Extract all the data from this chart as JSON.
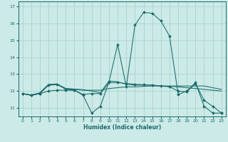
{
  "title": "",
  "xlabel": "Humidex (Indice chaleur)",
  "ylabel": "",
  "bg_color": "#cceae7",
  "grid_color": "#aad4d0",
  "line_color": "#1a6b6b",
  "xlim": [
    -0.5,
    23.5
  ],
  "ylim": [
    10.5,
    17.3
  ],
  "xticks": [
    0,
    1,
    2,
    3,
    4,
    5,
    6,
    7,
    8,
    9,
    10,
    11,
    12,
    13,
    14,
    15,
    16,
    17,
    18,
    19,
    20,
    21,
    22,
    23
  ],
  "yticks": [
    11,
    12,
    13,
    14,
    15,
    16,
    17
  ],
  "lines": [
    {
      "x": [
        0,
        1,
        2,
        3,
        4,
        5,
        6,
        7,
        8,
        9,
        10,
        11,
        12,
        13,
        14,
        15,
        16,
        17,
        18,
        19,
        20,
        21,
        22,
        23
      ],
      "y": [
        11.85,
        11.75,
        11.85,
        12.35,
        12.4,
        12.1,
        12.05,
        11.75,
        10.7,
        11.1,
        12.55,
        14.75,
        12.25,
        15.9,
        16.65,
        16.6,
        16.15,
        15.25,
        11.8,
        12.0,
        12.5,
        11.1,
        10.7,
        10.7
      ],
      "has_markers": true,
      "markersize": 2.0
    },
    {
      "x": [
        0,
        1,
        2,
        3,
        4,
        5,
        6,
        7,
        8,
        9,
        10,
        11,
        12,
        13,
        14,
        15,
        16,
        17,
        18,
        19,
        20,
        21,
        22,
        23
      ],
      "y": [
        11.85,
        11.78,
        11.88,
        12.35,
        12.38,
        12.15,
        12.1,
        12.05,
        12.05,
        12.05,
        12.15,
        12.2,
        12.25,
        12.25,
        12.28,
        12.3,
        12.3,
        12.3,
        12.3,
        12.3,
        12.3,
        12.3,
        12.2,
        12.1
      ],
      "has_markers": false,
      "markersize": 0
    },
    {
      "x": [
        0,
        1,
        2,
        3,
        4,
        5,
        6,
        7,
        8,
        9,
        10,
        11,
        12,
        13,
        14,
        15,
        16,
        17,
        18,
        19,
        20,
        21,
        22,
        23
      ],
      "y": [
        11.85,
        11.75,
        11.9,
        12.4,
        12.42,
        12.15,
        12.12,
        12.08,
        12.0,
        11.9,
        12.6,
        12.55,
        12.4,
        12.35,
        12.35,
        12.35,
        12.3,
        12.28,
        12.25,
        12.2,
        12.15,
        12.1,
        12.05,
        12.0
      ],
      "has_markers": false,
      "markersize": 0
    },
    {
      "x": [
        0,
        1,
        2,
        3,
        4,
        5,
        6,
        7,
        8,
        9,
        10,
        11,
        12,
        13,
        14,
        15,
        16,
        17,
        18,
        19,
        20,
        21,
        22,
        23
      ],
      "y": [
        11.85,
        11.75,
        11.85,
        12.0,
        12.05,
        12.05,
        12.05,
        11.8,
        11.85,
        11.85,
        12.5,
        12.5,
        12.45,
        12.4,
        12.38,
        12.35,
        12.3,
        12.25,
        12.0,
        11.95,
        12.45,
        11.45,
        11.1,
        10.7
      ],
      "has_markers": true,
      "markersize": 2.0
    }
  ]
}
